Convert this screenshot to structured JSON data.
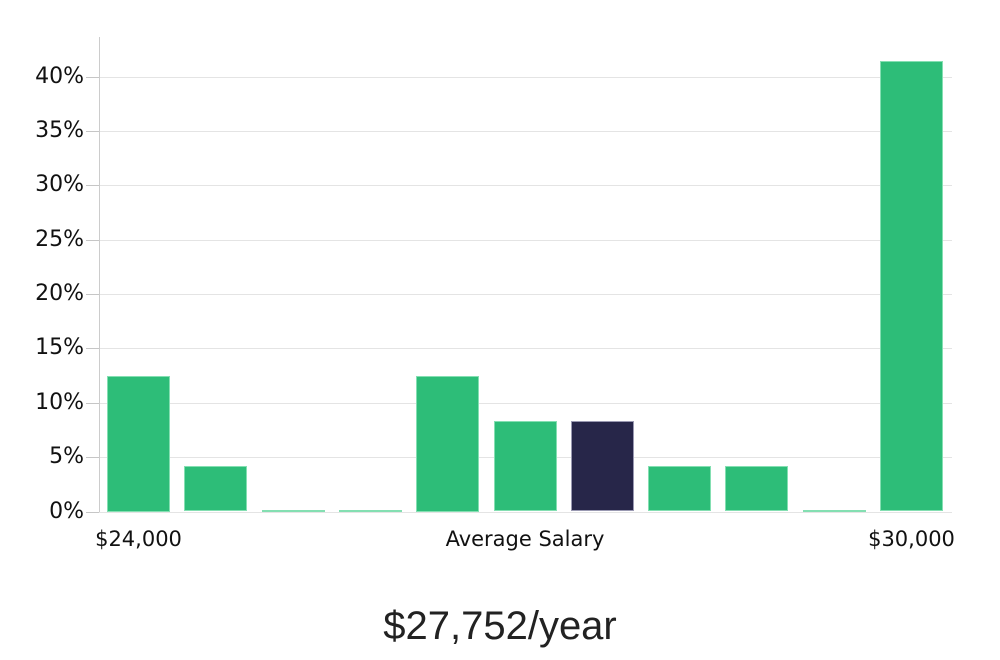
{
  "chart_data": {
    "type": "bar",
    "title": "$27,752/year",
    "values": [
      12.5,
      4.2,
      0.1,
      0.1,
      12.5,
      8.3,
      8.3,
      4.2,
      4.2,
      0.1,
      41.4
    ],
    "highlight_index": 6,
    "x_ticks": [
      {
        "bar_index": 0,
        "label": "$24,000"
      },
      {
        "bar_index": 5,
        "label": "Average Salary"
      },
      {
        "bar_index": 10,
        "label": "$30,000"
      }
    ],
    "y_ticks": [
      {
        "value": 0,
        "label": "0%"
      },
      {
        "value": 5,
        "label": "5%"
      },
      {
        "value": 10,
        "label": "10%"
      },
      {
        "value": 15,
        "label": "15%"
      },
      {
        "value": 20,
        "label": "20%"
      },
      {
        "value": 25,
        "label": "25%"
      },
      {
        "value": 30,
        "label": "30%"
      },
      {
        "value": 35,
        "label": "35%"
      },
      {
        "value": 40,
        "label": "40%"
      }
    ],
    "ylim": [
      0,
      43.5
    ],
    "grid": true,
    "legend": "none",
    "colors": {
      "bar": "#2dbd78",
      "bar_edge": "#84dfb2",
      "highlight_bar": "#272649",
      "highlight_edge": "#9a99b2",
      "gridline": "#e4e4e4",
      "tick_mark": "#c6c6c6",
      "axis_line": "#cccccc",
      "label_text": "#111111",
      "title_text": "#222222"
    }
  }
}
